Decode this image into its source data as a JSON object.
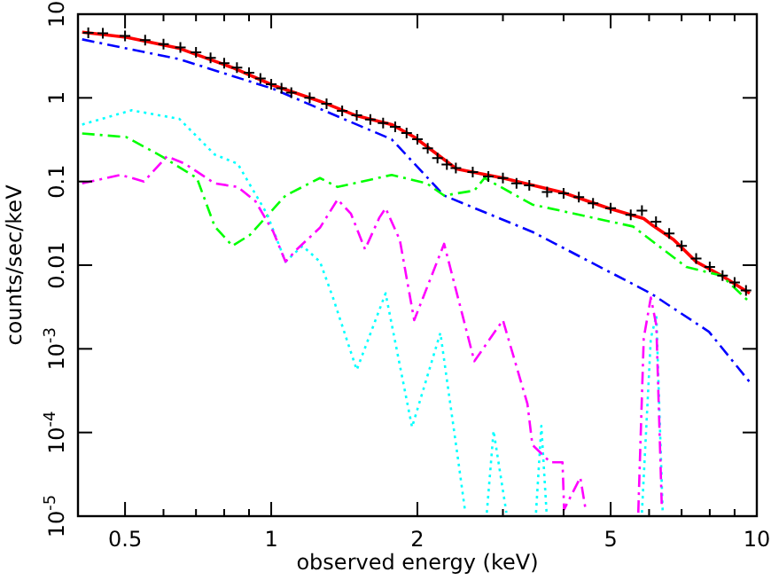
{
  "chart_data": {
    "type": "line",
    "xlabel": "observed energy (keV)",
    "ylabel": "counts/sec/keV",
    "log": "xy",
    "xlim": [
      0.4,
      10
    ],
    "ylim": [
      1e-05,
      10
    ],
    "xticks": [
      0.5,
      {
        "value": 0.6,
        "label": null
      },
      {
        "value": 0.7,
        "label": null
      },
      {
        "value": 0.8,
        "label": null
      },
      {
        "value": 0.9,
        "label": null
      },
      1,
      2,
      {
        "value": 3,
        "label": null
      },
      {
        "value": 4,
        "label": null
      },
      5,
      {
        "value": 6,
        "label": null
      },
      {
        "value": 7,
        "label": null
      },
      {
        "value": 8,
        "label": null
      },
      {
        "value": 9,
        "label": null
      },
      10
    ],
    "yticks": [
      10,
      1,
      0.1,
      0.01,
      {
        "value": 0.001,
        "label": "10$^{-3}$"
      },
      {
        "value": 0.0001,
        "label": "10$^{-4}$"
      },
      {
        "value": 1e-05,
        "label": "10$^{-5}$"
      }
    ],
    "series": [
      {
        "type": "scatter",
        "marker": "cross",
        "color": "#000000",
        "x": [
          0.42,
          0.45,
          0.5,
          0.55,
          0.6,
          0.65,
          0.7,
          0.75,
          0.8,
          0.85,
          0.9,
          0.95,
          1.0,
          1.05,
          1.1,
          1.2,
          1.3,
          1.4,
          1.5,
          1.6,
          1.7,
          1.8,
          1.9,
          2.0,
          2.1,
          2.2,
          2.3,
          2.4,
          2.6,
          2.8,
          3.0,
          3.2,
          3.4,
          3.7,
          4.0,
          4.3,
          4.6,
          5.0,
          5.5,
          5.8,
          6.2,
          6.6,
          7.0,
          7.5,
          8.0,
          8.5,
          9.0,
          9.5
        ],
        "values": [
          6.0,
          5.9,
          5.5,
          4.9,
          4.4,
          4.0,
          3.5,
          3.0,
          2.6,
          2.3,
          2.0,
          1.7,
          1.45,
          1.3,
          1.15,
          1.0,
          0.85,
          0.7,
          0.62,
          0.55,
          0.5,
          0.45,
          0.38,
          0.32,
          0.25,
          0.19,
          0.16,
          0.145,
          0.13,
          0.115,
          0.11,
          0.095,
          0.09,
          0.075,
          0.072,
          0.065,
          0.055,
          0.048,
          0.04,
          0.045,
          0.033,
          0.024,
          0.017,
          0.012,
          0.0095,
          0.0075,
          0.0062,
          0.005
        ]
      },
      {
        "line_style": "solid",
        "color": "#ff0000",
        "x": [
          0.408,
          0.503,
          0.647,
          0.832,
          1.01,
          1.26,
          1.5,
          1.77,
          1.97,
          2.41,
          3.0,
          3.98,
          4.95,
          5.85,
          6.05,
          6.75,
          7.5,
          8.46,
          9.67
        ],
        "values": [
          6.1,
          5.3,
          3.9,
          2.3,
          1.41,
          0.91,
          0.61,
          0.48,
          0.34,
          0.141,
          0.11,
          0.074,
          0.048,
          0.036,
          0.031,
          0.02,
          0.011,
          0.0075,
          0.0046
        ]
      },
      {
        "line_style": "dashed",
        "color": "#0000ff",
        "x": [
          0.408,
          0.647,
          1.01,
          1.5,
          1.77,
          2.27,
          3.45,
          6.05,
          7.97,
          9.67
        ],
        "values": [
          5.0,
          2.9,
          1.28,
          0.48,
          0.32,
          0.068,
          0.025,
          0.0046,
          0.0016,
          0.0004
        ]
      },
      {
        "line_style": "dashed",
        "color": "#00ff00",
        "x": [
          0.408,
          0.503,
          0.595,
          0.703,
          0.765,
          0.832,
          0.904,
          1.07,
          1.26,
          1.37,
          1.77,
          2.09,
          2.27,
          2.62,
          2.75,
          3.45,
          5.56,
          7.16,
          8.46,
          9.67
        ],
        "values": [
          0.375,
          0.34,
          0.2,
          0.11,
          0.029,
          0.017,
          0.023,
          0.068,
          0.11,
          0.086,
          0.12,
          0.095,
          0.068,
          0.078,
          0.11,
          0.053,
          0.029,
          0.0095,
          0.0075,
          0.0036
        ]
      },
      {
        "line_style": "dotted",
        "color": "#00ffff",
        "x": [
          0.408,
          0.516,
          0.647,
          0.765,
          0.853,
          0.98,
          1.07,
          1.16,
          1.26,
          1.34,
          1.5,
          1.72,
          1.95,
          2.23,
          2.43,
          2.51,
          2.6,
          2.78,
          2.87,
          3.05,
          3.3,
          3.51,
          3.6,
          3.69,
          4.5,
          5.8,
          6.05,
          6.21,
          6.4
        ],
        "values": [
          0.48,
          0.71,
          0.56,
          0.21,
          0.163,
          0.041,
          0.011,
          0.017,
          0.011,
          0.0041,
          0.00056,
          0.0046,
          0.000116,
          0.00155,
          4.4e-05,
          1.1e-05,
          null,
          1.1e-05,
          0.000105,
          1.1e-05,
          null,
          1.1e-05,
          0.00012,
          1.1e-05,
          null,
          1.1e-05,
          0.00134,
          0.0025,
          1.1e-05
        ]
      },
      {
        "line_style": "dashed",
        "color": "#ff00ff",
        "x": [
          0.408,
          0.49,
          0.547,
          0.61,
          0.664,
          0.765,
          0.853,
          0.928,
          1.01,
          1.07,
          1.13,
          1.26,
          1.37,
          1.46,
          1.56,
          1.67,
          1.72,
          1.84,
          1.97,
          2.27,
          2.62,
          3.0,
          3.37,
          3.45,
          3.76,
          3.98,
          4.01,
          4.33,
          4.44,
          5.0,
          5.7,
          5.85,
          6.05,
          6.21,
          6.37
        ],
        "values": [
          0.095,
          0.12,
          0.1,
          0.2,
          0.163,
          0.095,
          0.086,
          0.058,
          0.025,
          0.011,
          0.0155,
          0.028,
          0.061,
          0.041,
          0.0155,
          0.037,
          0.048,
          0.02,
          0.0022,
          0.018,
          0.00071,
          0.0022,
          0.00022,
          7.1e-05,
          4.4e-05,
          4.4e-05,
          1.2e-05,
          2.9e-05,
          1.2e-05,
          null,
          1.1e-05,
          0.00134,
          0.0041,
          0.0019,
          1.4e-05
        ]
      }
    ]
  }
}
